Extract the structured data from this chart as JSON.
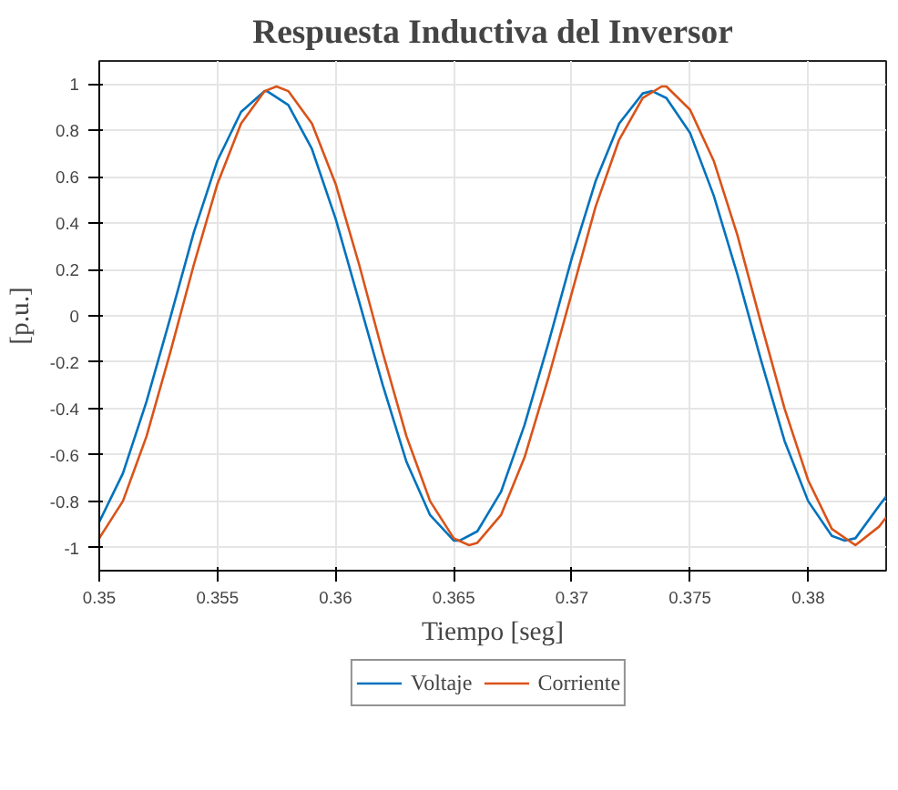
{
  "chart_data": {
    "type": "line",
    "title": "Respuesta Inductiva del Inversor",
    "xlabel": "Tiempo [seg]",
    "ylabel": "[p.u.]",
    "xlim": [
      0.35,
      0.3833
    ],
    "ylim": [
      -1.1,
      1.1
    ],
    "xticks": [
      0.35,
      0.355,
      0.36,
      0.365,
      0.37,
      0.375,
      0.38
    ],
    "yticks": [
      -1,
      -0.8,
      -0.6,
      -0.4,
      -0.2,
      0,
      0.2,
      0.4,
      0.6,
      0.8,
      1
    ],
    "grid": true,
    "legend": "bottom",
    "line_style": "solid",
    "marker": "none",
    "series": [
      {
        "name": "Voltaje",
        "color": "#0072bd",
        "x": [
          0.35,
          0.351,
          0.352,
          0.353,
          0.354,
          0.355,
          0.356,
          0.357,
          0.3571,
          0.358,
          0.359,
          0.36,
          0.361,
          0.362,
          0.363,
          0.364,
          0.365,
          0.36525,
          0.366,
          0.367,
          0.368,
          0.369,
          0.37,
          0.371,
          0.372,
          0.373,
          0.3734,
          0.374,
          0.375,
          0.376,
          0.377,
          0.378,
          0.379,
          0.38,
          0.381,
          0.38155,
          0.382,
          0.383,
          0.3833
        ],
        "values": [
          -0.89,
          -0.68,
          -0.37,
          -0.01,
          0.36,
          0.67,
          0.88,
          0.97,
          0.97,
          0.91,
          0.72,
          0.42,
          0.06,
          -0.3,
          -0.63,
          -0.86,
          -0.97,
          -0.97,
          -0.93,
          -0.76,
          -0.47,
          -0.12,
          0.25,
          0.58,
          0.83,
          0.96,
          0.97,
          0.94,
          0.79,
          0.52,
          0.18,
          -0.19,
          -0.54,
          -0.8,
          -0.95,
          -0.97,
          -0.96,
          -0.82,
          -0.78
        ]
      },
      {
        "name": "Corriente",
        "color": "#d95319",
        "x": [
          0.35,
          0.351,
          0.352,
          0.353,
          0.354,
          0.355,
          0.356,
          0.357,
          0.3575,
          0.358,
          0.359,
          0.36,
          0.361,
          0.362,
          0.363,
          0.364,
          0.365,
          0.36565,
          0.366,
          0.367,
          0.368,
          0.369,
          0.37,
          0.371,
          0.372,
          0.373,
          0.3738,
          0.374,
          0.375,
          0.376,
          0.377,
          0.378,
          0.379,
          0.38,
          0.381,
          0.382,
          0.383,
          0.3833
        ],
        "values": [
          -0.96,
          -0.8,
          -0.52,
          -0.16,
          0.22,
          0.57,
          0.83,
          0.97,
          0.99,
          0.97,
          0.83,
          0.57,
          0.22,
          -0.16,
          -0.52,
          -0.8,
          -0.96,
          -0.99,
          -0.98,
          -0.86,
          -0.61,
          -0.27,
          0.1,
          0.47,
          0.76,
          0.94,
          0.99,
          0.99,
          0.89,
          0.67,
          0.35,
          -0.03,
          -0.4,
          -0.71,
          -0.92,
          -0.99,
          -0.91,
          -0.87
        ]
      }
    ]
  }
}
